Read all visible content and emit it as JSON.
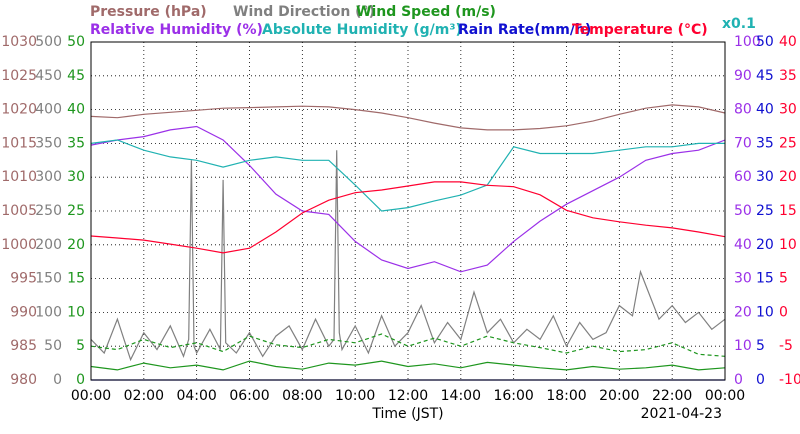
{
  "chart_data": {
    "type": "line",
    "xlabel": "Time (JST)",
    "date": "2021-04-23",
    "x": [
      0,
      1,
      2,
      3,
      4,
      5,
      6,
      7,
      8,
      9,
      10,
      11,
      12,
      13,
      14,
      15,
      16,
      17,
      18,
      19,
      20,
      21,
      22,
      23,
      24
    ],
    "xlim": [
      0,
      24
    ],
    "xticks": [
      {
        "value": 0,
        "label": "00:00"
      },
      {
        "value": 2,
        "label": "02:00"
      },
      {
        "value": 4,
        "label": "04:00"
      },
      {
        "value": 6,
        "label": "06:00"
      },
      {
        "value": 8,
        "label": "08:00"
      },
      {
        "value": 10,
        "label": "10:00"
      },
      {
        "value": 12,
        "label": "12:00"
      },
      {
        "value": 14,
        "label": "14:00"
      },
      {
        "value": 16,
        "label": "16:00"
      },
      {
        "value": 18,
        "label": "18:00"
      },
      {
        "value": 20,
        "label": "20:00"
      },
      {
        "value": 22,
        "label": "22:00"
      },
      {
        "value": 24,
        "label": "00:00"
      }
    ],
    "grid": true,
    "axes": [
      {
        "color": "#a06a6a",
        "lim": [
          980,
          1030
        ],
        "ticks": [
          980,
          985,
          990,
          995,
          1000,
          1005,
          1010,
          1015,
          1020,
          1025,
          1030
        ]
      },
      {
        "color": "#808080",
        "lim": [
          0,
          500
        ],
        "ticks": [
          0,
          50,
          100,
          150,
          200,
          250,
          300,
          350,
          400,
          450,
          500
        ]
      },
      {
        "color": "#1e961e",
        "lim": [
          0,
          50
        ],
        "ticks": [
          0,
          5,
          10,
          15,
          20,
          25,
          30,
          35,
          40,
          45,
          50
        ]
      },
      {
        "color": "#9b30e8",
        "lim": [
          0,
          100
        ],
        "ticks": [
          0,
          10,
          20,
          30,
          40,
          50,
          60,
          70,
          80,
          90,
          100
        ]
      },
      {
        "color": "#1010d0",
        "lim": [
          0,
          50
        ],
        "ticks": [
          0,
          5,
          10,
          15,
          20,
          25,
          30,
          35,
          40,
          45,
          50
        ]
      },
      {
        "color": "#ff0030",
        "lim": [
          -10,
          40
        ],
        "ticks": [
          -10,
          -5,
          0,
          5,
          10,
          15,
          20,
          25,
          30,
          35,
          40
        ]
      }
    ],
    "series": [
      {
        "name": "Pressure (hPa)",
        "axis": 0,
        "color": "#a06a6a",
        "values": [
          1019.0,
          1018.8,
          1019.3,
          1019.6,
          1019.9,
          1020.2,
          1020.3,
          1020.4,
          1020.5,
          1020.4,
          1020.0,
          1019.5,
          1018.8,
          1018.0,
          1017.3,
          1017.0,
          1017.0,
          1017.2,
          1017.6,
          1018.3,
          1019.3,
          1020.2,
          1020.7,
          1020.4,
          1019.5
        ]
      },
      {
        "name": "Wind Direction (°)",
        "axis": 1,
        "color": "#808080",
        "x": [
          0,
          0.5,
          1,
          1.5,
          2,
          2.5,
          3,
          3.5,
          3.7,
          3.8,
          3.9,
          4,
          4.5,
          4.9,
          5,
          5.1,
          5.5,
          6,
          6.5,
          7,
          7.5,
          8,
          8.5,
          9,
          9.2,
          9.3,
          9.4,
          9.5,
          10,
          10.5,
          11,
          11.5,
          12,
          12.5,
          13,
          13.5,
          14,
          14.5,
          15,
          15.5,
          16,
          16.5,
          17,
          17.5,
          18,
          18.5,
          19,
          19.5,
          20,
          20.5,
          20.8,
          21,
          21.5,
          22,
          22.5,
          23,
          23.5,
          24
        ],
        "values": [
          60,
          40,
          90,
          30,
          70,
          45,
          80,
          35,
          60,
          325,
          50,
          40,
          75,
          45,
          296,
          55,
          40,
          70,
          35,
          65,
          80,
          45,
          90,
          50,
          60,
          340,
          70,
          45,
          80,
          40,
          95,
          50,
          70,
          110,
          55,
          85,
          60,
          130,
          70,
          90,
          55,
          75,
          60,
          95,
          50,
          85,
          60,
          70,
          110,
          95,
          160,
          140,
          90,
          110,
          85,
          100,
          75,
          90
        ]
      },
      {
        "name": "Wind Speed (m/s)",
        "axis": 2,
        "color": "#1e961e",
        "values": [
          2.0,
          1.5,
          2.5,
          1.8,
          2.2,
          1.5,
          2.8,
          2.0,
          1.6,
          2.5,
          2.2,
          2.8,
          2.0,
          2.4,
          1.8,
          2.6,
          2.2,
          1.8,
          1.5,
          2.0,
          1.6,
          1.8,
          2.2,
          1.5,
          1.8
        ]
      },
      {
        "axis": 2,
        "color": "#1e961e",
        "dash": true,
        "values": [
          5.0,
          4.5,
          6.0,
          4.8,
          5.5,
          4.2,
          6.5,
          5.2,
          4.8,
          6.0,
          5.5,
          6.8,
          5.0,
          6.2,
          5.0,
          6.5,
          5.5,
          4.8,
          4.0,
          5.0,
          4.2,
          4.5,
          5.5,
          3.8,
          3.5
        ]
      },
      {
        "name": "Relative Humidity (%)",
        "axis": 3,
        "color": "#9b30e8",
        "values": [
          69.5,
          71,
          72,
          74,
          75,
          71,
          63.5,
          55,
          50,
          49,
          41,
          35.5,
          33,
          35,
          32,
          34,
          41,
          47,
          52,
          56,
          60,
          65,
          67,
          68,
          71
        ]
      },
      {
        "name": "Absolute Humidity (g/m³)",
        "axis": 3,
        "color": "#20b2b2",
        "scale_note": "x0.1",
        "values": [
          70,
          71,
          68,
          66,
          65,
          63,
          65,
          66,
          65,
          65,
          57.7,
          50,
          51,
          53,
          54.7,
          57.7,
          69,
          67,
          67,
          67,
          68,
          69,
          69,
          70,
          70
        ]
      },
      {
        "name": "Rain Rate(mm/h)",
        "axis": 4,
        "color": "#1010d0",
        "values": [
          0,
          0,
          0,
          0,
          0,
          0,
          0,
          0,
          0,
          0,
          0,
          0,
          0,
          0,
          0,
          0,
          0,
          0,
          0,
          0,
          0,
          0,
          0,
          0,
          0
        ]
      },
      {
        "name": "Temperature (°C)",
        "axis": 5,
        "color": "#ff0030",
        "values": [
          11.3,
          11.0,
          10.7,
          10.1,
          9.5,
          8.8,
          9.5,
          11.9,
          14.7,
          16.6,
          17.7,
          18.1,
          18.7,
          19.3,
          19.3,
          18.8,
          18.6,
          17.4,
          15.1,
          14.0,
          13.4,
          12.9,
          12.5,
          11.9,
          11.2
        ]
      }
    ]
  }
}
